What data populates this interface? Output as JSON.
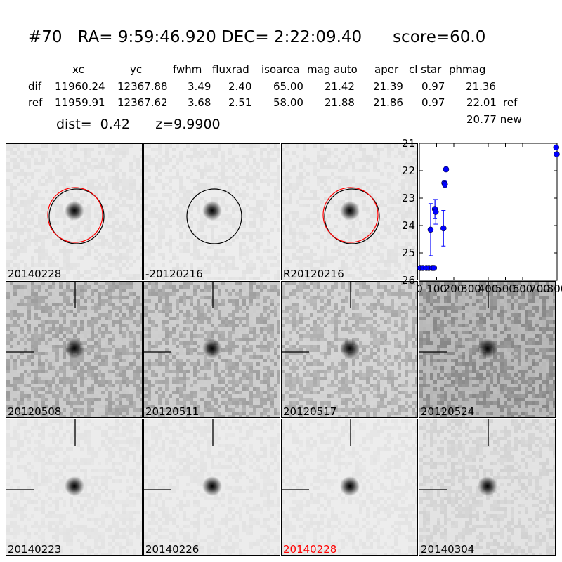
{
  "header": {
    "id": "#70",
    "ra": "RA= 9:59:46.920",
    "dec": "DEC= 2:22:09.40",
    "score": "score=60.0"
  },
  "table": {
    "columns": [
      "xc",
      "yc",
      "fwhm",
      "fluxrad",
      "isoarea",
      "mag auto",
      "aper",
      "cl star",
      "phmag"
    ],
    "rows": [
      {
        "label": "dif",
        "values": [
          "11960.24",
          "12367.88",
          "3.49",
          "2.40",
          "65.00",
          "21.42",
          "21.39",
          "0.97",
          "21.36"
        ],
        "extra": ""
      },
      {
        "label": "ref",
        "values": [
          "11959.91",
          "12367.62",
          "3.68",
          "2.51",
          "58.00",
          "21.88",
          "21.86",
          "0.97",
          "22.01"
        ],
        "extra": "ref"
      }
    ],
    "new_line": "20.77 new"
  },
  "dist_line": {
    "dist": "dist=  0.42",
    "z": "z=9.9900"
  },
  "panels": [
    {
      "label": "20140228",
      "kind": "cutout",
      "bg": "#ececec",
      "noise": 0.05,
      "circle": "both",
      "ticks": false
    },
    {
      "label": "-20120216",
      "kind": "cutout",
      "bg": "#ededed",
      "noise": 0.05,
      "circle": "black",
      "ticks": false
    },
    {
      "label": "R20120216",
      "kind": "cutout",
      "bg": "#ececec",
      "noise": 0.05,
      "circle": "both",
      "ticks": false
    },
    {
      "label": "20120508",
      "kind": "cutout",
      "bg": "#c8c8c8",
      "noise": 0.22,
      "circle": "none",
      "ticks": true
    },
    {
      "label": "20120511",
      "kind": "cutout",
      "bg": "#cbcbcb",
      "noise": 0.22,
      "circle": "none",
      "ticks": true
    },
    {
      "label": "20120517",
      "kind": "cutout",
      "bg": "#d2d2d2",
      "noise": 0.2,
      "circle": "none",
      "ticks": true
    },
    {
      "label": "20120524",
      "kind": "cutout",
      "bg": "#b5b5b5",
      "noise": 0.26,
      "circle": "none",
      "ticks": true
    },
    {
      "label": "20140223",
      "kind": "cutout",
      "bg": "#ececec",
      "noise": 0.04,
      "circle": "none",
      "ticks": true
    },
    {
      "label": "20140226",
      "kind": "cutout",
      "bg": "#ececec",
      "noise": 0.04,
      "circle": "none",
      "ticks": true
    },
    {
      "label": "20140228",
      "kind": "cutout",
      "bg": "#ededed",
      "noise": 0.04,
      "circle": "none",
      "ticks": true,
      "labelColor": "#ff0000"
    },
    {
      "label": "20140304",
      "kind": "cutout",
      "bg": "#e3e3e3",
      "noise": 0.08,
      "circle": "none",
      "ticks": true
    }
  ],
  "chart_data": {
    "type": "scatter",
    "xlim": [
      0,
      800
    ],
    "ylim": [
      26,
      21
    ],
    "xticks": [
      "0",
      "100",
      "200",
      "300",
      "400",
      "500",
      "600",
      "700",
      "800"
    ],
    "yticks": [
      "21",
      "22",
      "23",
      "24",
      "25",
      "26"
    ],
    "color": "#0000ff",
    "points": [
      {
        "x": 5,
        "y": 25.55,
        "err": 0
      },
      {
        "x": 20,
        "y": 25.55,
        "err": 0
      },
      {
        "x": 40,
        "y": 25.55,
        "err": 0
      },
      {
        "x": 55,
        "y": 25.55,
        "err": 0
      },
      {
        "x": 65,
        "y": 24.15,
        "err": 0.95
      },
      {
        "x": 75,
        "y": 25.55,
        "err": 0
      },
      {
        "x": 85,
        "y": 25.55,
        "err": 0
      },
      {
        "x": 90,
        "y": 23.4,
        "err": 0.35
      },
      {
        "x": 95,
        "y": 23.5,
        "err": 0.45
      },
      {
        "x": 140,
        "y": 24.1,
        "err": 0.65
      },
      {
        "x": 145,
        "y": 22.45,
        "err": 0.1
      },
      {
        "x": 148,
        "y": 22.5,
        "err": 0.1
      },
      {
        "x": 155,
        "y": 21.95,
        "err": 0.08
      },
      {
        "x": 795,
        "y": 21.15,
        "err": 0.05
      },
      {
        "x": 798,
        "y": 21.4,
        "err": 0.05
      }
    ]
  }
}
